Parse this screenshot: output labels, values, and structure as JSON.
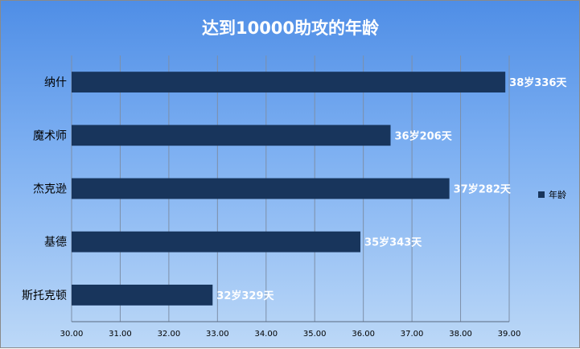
{
  "chart_data": {
    "type": "bar",
    "orientation": "horizontal",
    "title": "达到10000助攻的年龄",
    "categories": [
      "纳什",
      "魔术师",
      "杰克逊",
      "基德",
      "斯托克顿"
    ],
    "series": [
      {
        "name": "年龄",
        "values": [
          38.92,
          36.56,
          37.77,
          35.94,
          32.9
        ],
        "labels": [
          "38岁336天",
          "36岁206天",
          "37岁282天",
          "35岁343天",
          "32岁329天"
        ]
      }
    ],
    "xlim": [
      30,
      39
    ],
    "x_ticks": [
      "30.00",
      "31.00",
      "32.00",
      "33.00",
      "34.00",
      "35.00",
      "36.00",
      "37.00",
      "38.00",
      "39.00"
    ],
    "grid": "vertical",
    "legend_position": "right",
    "colors": {
      "bar": "#18355c",
      "grid": "#7d8fa8",
      "background_top": "#4f8ee6",
      "background_bottom": "#bcd8f7"
    }
  }
}
